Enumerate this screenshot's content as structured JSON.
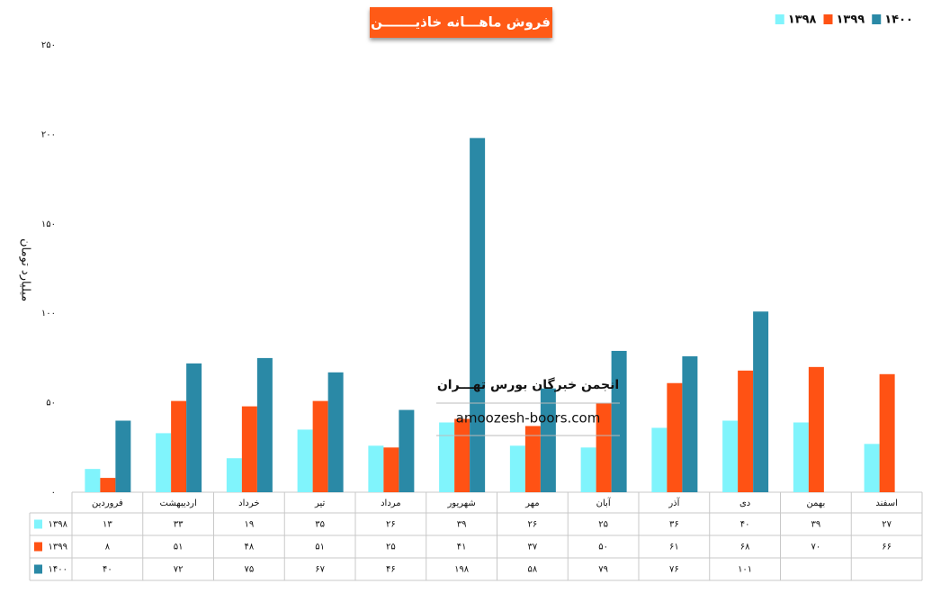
{
  "chart_data": {
    "type": "bar",
    "title": "فروش ماهـــانه خاذیـــــــن",
    "y_label": "میلیارد تومان",
    "annotations": [
      "انجمن خبرگان بورس تهـــران",
      "amoozesh-boors.com"
    ],
    "categories": [
      "فروردین",
      "اردیبهشت",
      "خرداد",
      "تیر",
      "مرداد",
      "شهریور",
      "مهر",
      "آبان",
      "آذر",
      "دی",
      "بهمن",
      "اسفند"
    ],
    "series": [
      {
        "name": "۱۳۹۸",
        "color": "#80f4fc",
        "values": [
          13,
          33,
          19,
          35,
          26,
          39,
          26,
          25,
          36,
          40,
          39,
          27
        ],
        "value_labels": [
          "۱۳",
          "۳۳",
          "۱۹",
          "۳۵",
          "۲۶",
          "۳۹",
          "۲۶",
          "۲۵",
          "۳۶",
          "۴۰",
          "۳۹",
          "۲۷"
        ]
      },
      {
        "name": "۱۳۹۹",
        "color": "#ff5214",
        "values": [
          8,
          51,
          48,
          51,
          25,
          41,
          37,
          50,
          61,
          68,
          70,
          66
        ],
        "value_labels": [
          "۸",
          "۵۱",
          "۴۸",
          "۵۱",
          "۲۵",
          "۴۱",
          "۳۷",
          "۵۰",
          "۶۱",
          "۶۸",
          "۷۰",
          "۶۶"
        ]
      },
      {
        "name": "۱۴۰۰",
        "color": "#2a89a6",
        "values": [
          40,
          72,
          75,
          67,
          46,
          198,
          58,
          79,
          76,
          101,
          null,
          null
        ],
        "value_labels": [
          "۴۰",
          "۷۲",
          "۷۵",
          "۶۷",
          "۴۶",
          "۱۹۸",
          "۵۸",
          "۷۹",
          "۷۶",
          "۱۰۱",
          null,
          null
        ]
      }
    ],
    "ylim": [
      0,
      250
    ],
    "yticks": [
      {
        "value": 0,
        "label": "۰"
      },
      {
        "value": 50,
        "label": "۵۰"
      },
      {
        "value": 100,
        "label": "۱۰۰"
      },
      {
        "value": 150,
        "label": "۱۵۰"
      },
      {
        "value": 200,
        "label": "۲۰۰"
      },
      {
        "value": 250,
        "label": "۲۵۰"
      }
    ],
    "legend": "top-right",
    "grid": false
  }
}
